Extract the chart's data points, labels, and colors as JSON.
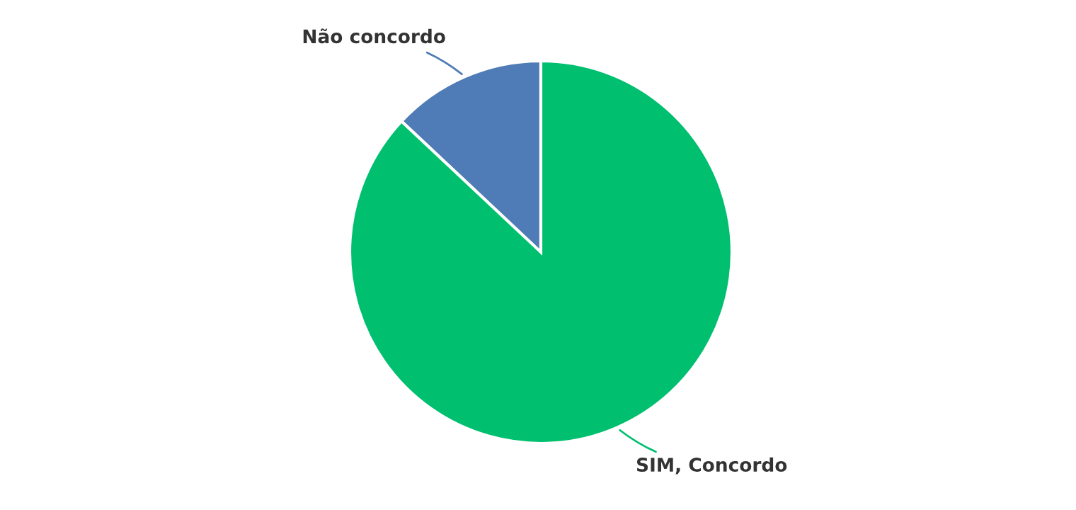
{
  "chart_data": {
    "type": "pie",
    "categories": [
      "Não concordo",
      "SIM, Concordo"
    ],
    "values": [
      13,
      87
    ],
    "colors": [
      "#4f7cb6",
      "#00bf6f"
    ]
  }
}
